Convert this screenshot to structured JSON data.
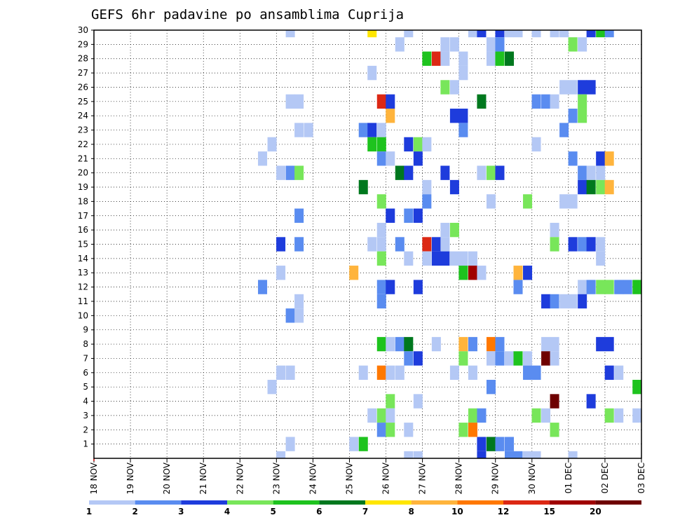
{
  "chart_data": {
    "type": "heatmap",
    "title": "GEFS 6hr padavine po ansamblima Cuprija",
    "xlabel": "",
    "ylabel": "",
    "x_tick_labels": [
      "18 NOV",
      "19 NOV",
      "20 NOV",
      "21 NOV",
      "22 NOV",
      "23 NOV",
      "24 NOV",
      "25 NOV",
      "26 NOV",
      "27 NOV",
      "28 NOV",
      "29 NOV",
      "30 NOV",
      "01 DEC",
      "02 DEC",
      "03 DEC"
    ],
    "y_tick_labels": [
      "1",
      "2",
      "3",
      "4",
      "5",
      "6",
      "7",
      "8",
      "9",
      "10",
      "11",
      "12",
      "13",
      "14",
      "15",
      "16",
      "17",
      "18",
      "19",
      "20",
      "21",
      "22",
      "23",
      "24",
      "25",
      "26",
      "27",
      "28",
      "29",
      "30"
    ],
    "x_range_days": [
      0,
      15
    ],
    "y_range_members": [
      0,
      30
    ],
    "grid": true,
    "legend": {
      "placement": "bottom",
      "labels": [
        "1",
        "2",
        "3",
        "4",
        "5",
        "6",
        "7",
        "8",
        "10",
        "12",
        "15",
        "20"
      ],
      "colors": [
        "#b4c8f5",
        "#5a8cf0",
        "#1e3cdc",
        "#78e65a",
        "#1ec31e",
        "#00781e",
        "#ffe600",
        "#ffb43c",
        "#ff7800",
        "#dc2814",
        "#a00000",
        "#6e0000"
      ]
    },
    "cells": [
      {
        "m": 30,
        "x": 5.38,
        "v": 1
      },
      {
        "m": 30,
        "x": 7.62,
        "v": 7
      },
      {
        "m": 30,
        "x": 8.62,
        "v": 1
      },
      {
        "m": 30,
        "x": 10.38,
        "v": 1
      },
      {
        "m": 30,
        "x": 10.62,
        "v": 3
      },
      {
        "m": 30,
        "x": 11.12,
        "v": 3
      },
      {
        "m": 30,
        "x": 11.38,
        "v": 1
      },
      {
        "m": 30,
        "x": 11.62,
        "v": 1
      },
      {
        "m": 30,
        "x": 12.12,
        "v": 1
      },
      {
        "m": 30,
        "x": 12.62,
        "v": 1
      },
      {
        "m": 30,
        "x": 12.88,
        "v": 1
      },
      {
        "m": 30,
        "x": 13.62,
        "v": 3
      },
      {
        "m": 30,
        "x": 13.88,
        "v": 5
      },
      {
        "m": 30,
        "x": 14.12,
        "v": 2
      },
      {
        "m": 29,
        "x": 8.38,
        "v": 1
      },
      {
        "m": 29,
        "x": 9.62,
        "v": 1
      },
      {
        "m": 29,
        "x": 9.88,
        "v": 1
      },
      {
        "m": 29,
        "x": 10.88,
        "v": 1
      },
      {
        "m": 29,
        "x": 11.12,
        "v": 2
      },
      {
        "m": 29,
        "x": 13.12,
        "v": 4
      },
      {
        "m": 29,
        "x": 13.38,
        "v": 1
      },
      {
        "m": 28,
        "x": 9.12,
        "v": 5
      },
      {
        "m": 28,
        "x": 9.38,
        "v": 12
      },
      {
        "m": 28,
        "x": 9.62,
        "v": 1
      },
      {
        "m": 28,
        "x": 10.12,
        "v": 1
      },
      {
        "m": 28,
        "x": 10.88,
        "v": 1
      },
      {
        "m": 28,
        "x": 11.12,
        "v": 5
      },
      {
        "m": 28,
        "x": 11.38,
        "v": 6
      },
      {
        "m": 27,
        "x": 7.62,
        "v": 1
      },
      {
        "m": 27,
        "x": 10.12,
        "v": 1
      },
      {
        "m": 26,
        "x": 9.62,
        "v": 4
      },
      {
        "m": 26,
        "x": 9.88,
        "v": 1
      },
      {
        "m": 26,
        "x": 12.88,
        "v": 1
      },
      {
        "m": 26,
        "x": 13.12,
        "v": 1
      },
      {
        "m": 26,
        "x": 13.38,
        "v": 3
      },
      {
        "m": 26,
        "x": 13.62,
        "v": 3
      },
      {
        "m": 25,
        "x": 5.38,
        "v": 1
      },
      {
        "m": 25,
        "x": 5.62,
        "v": 1
      },
      {
        "m": 25,
        "x": 7.88,
        "v": 12
      },
      {
        "m": 25,
        "x": 8.12,
        "v": 3
      },
      {
        "m": 25,
        "x": 10.62,
        "v": 6
      },
      {
        "m": 25,
        "x": 12.12,
        "v": 2
      },
      {
        "m": 25,
        "x": 12.38,
        "v": 2
      },
      {
        "m": 25,
        "x": 12.62,
        "v": 1
      },
      {
        "m": 25,
        "x": 13.38,
        "v": 4
      },
      {
        "m": 24,
        "x": 8.12,
        "v": 8
      },
      {
        "m": 24,
        "x": 9.88,
        "v": 3
      },
      {
        "m": 24,
        "x": 10.12,
        "v": 3
      },
      {
        "m": 24,
        "x": 13.12,
        "v": 2
      },
      {
        "m": 24,
        "x": 13.38,
        "v": 4
      },
      {
        "m": 23,
        "x": 5.62,
        "v": 1
      },
      {
        "m": 23,
        "x": 5.88,
        "v": 1
      },
      {
        "m": 23,
        "x": 7.38,
        "v": 2
      },
      {
        "m": 23,
        "x": 7.62,
        "v": 3
      },
      {
        "m": 23,
        "x": 7.88,
        "v": 1
      },
      {
        "m": 23,
        "x": 10.12,
        "v": 2
      },
      {
        "m": 23,
        "x": 12.88,
        "v": 2
      },
      {
        "m": 22,
        "x": 4.88,
        "v": 1
      },
      {
        "m": 22,
        "x": 7.62,
        "v": 5
      },
      {
        "m": 22,
        "x": 7.88,
        "v": 5
      },
      {
        "m": 22,
        "x": 8.62,
        "v": 3
      },
      {
        "m": 22,
        "x": 8.88,
        "v": 4
      },
      {
        "m": 22,
        "x": 9.12,
        "v": 1
      },
      {
        "m": 22,
        "x": 12.12,
        "v": 1
      },
      {
        "m": 21,
        "x": 4.62,
        "v": 1
      },
      {
        "m": 21,
        "x": 7.88,
        "v": 2
      },
      {
        "m": 21,
        "x": 8.12,
        "v": 1
      },
      {
        "m": 21,
        "x": 8.88,
        "v": 3
      },
      {
        "m": 21,
        "x": 13.12,
        "v": 2
      },
      {
        "m": 21,
        "x": 13.88,
        "v": 3
      },
      {
        "m": 21,
        "x": 14.12,
        "v": 8
      },
      {
        "m": 20,
        "x": 5.12,
        "v": 1
      },
      {
        "m": 20,
        "x": 5.38,
        "v": 2
      },
      {
        "m": 20,
        "x": 5.62,
        "v": 4
      },
      {
        "m": 20,
        "x": 8.38,
        "v": 6
      },
      {
        "m": 20,
        "x": 8.62,
        "v": 3
      },
      {
        "m": 20,
        "x": 9.62,
        "v": 3
      },
      {
        "m": 20,
        "x": 10.62,
        "v": 1
      },
      {
        "m": 20,
        "x": 10.88,
        "v": 4
      },
      {
        "m": 20,
        "x": 11.12,
        "v": 3
      },
      {
        "m": 20,
        "x": 13.38,
        "v": 2
      },
      {
        "m": 20,
        "x": 13.62,
        "v": 1
      },
      {
        "m": 20,
        "x": 13.88,
        "v": 1
      },
      {
        "m": 19,
        "x": 7.38,
        "v": 6
      },
      {
        "m": 19,
        "x": 9.12,
        "v": 1
      },
      {
        "m": 19,
        "x": 9.88,
        "v": 3
      },
      {
        "m": 19,
        "x": 13.38,
        "v": 3
      },
      {
        "m": 19,
        "x": 13.62,
        "v": 6
      },
      {
        "m": 19,
        "x": 13.88,
        "v": 4
      },
      {
        "m": 19,
        "x": 14.12,
        "v": 8
      },
      {
        "m": 18,
        "x": 7.88,
        "v": 4
      },
      {
        "m": 18,
        "x": 9.12,
        "v": 2
      },
      {
        "m": 18,
        "x": 10.88,
        "v": 1
      },
      {
        "m": 18,
        "x": 11.88,
        "v": 4
      },
      {
        "m": 18,
        "x": 12.88,
        "v": 1
      },
      {
        "m": 18,
        "x": 13.12,
        "v": 1
      },
      {
        "m": 17,
        "x": 5.62,
        "v": 2
      },
      {
        "m": 17,
        "x": 8.12,
        "v": 3
      },
      {
        "m": 17,
        "x": 8.62,
        "v": 2
      },
      {
        "m": 17,
        "x": 8.88,
        "v": 3
      },
      {
        "m": 16,
        "x": 7.88,
        "v": 1
      },
      {
        "m": 16,
        "x": 9.62,
        "v": 1
      },
      {
        "m": 16,
        "x": 9.88,
        "v": 4
      },
      {
        "m": 16,
        "x": 12.62,
        "v": 1
      },
      {
        "m": 15,
        "x": 5.12,
        "v": 3
      },
      {
        "m": 15,
        "x": 5.62,
        "v": 2
      },
      {
        "m": 15,
        "x": 7.62,
        "v": 1
      },
      {
        "m": 15,
        "x": 7.88,
        "v": 1
      },
      {
        "m": 15,
        "x": 8.38,
        "v": 2
      },
      {
        "m": 15,
        "x": 9.12,
        "v": 12
      },
      {
        "m": 15,
        "x": 9.38,
        "v": 3
      },
      {
        "m": 15,
        "x": 9.62,
        "v": 1
      },
      {
        "m": 15,
        "x": 12.62,
        "v": 4
      },
      {
        "m": 15,
        "x": 13.12,
        "v": 3
      },
      {
        "m": 15,
        "x": 13.38,
        "v": 2
      },
      {
        "m": 15,
        "x": 13.62,
        "v": 3
      },
      {
        "m": 15,
        "x": 13.88,
        "v": 1
      },
      {
        "m": 14,
        "x": 7.88,
        "v": 4
      },
      {
        "m": 14,
        "x": 8.62,
        "v": 1
      },
      {
        "m": 14,
        "x": 9.12,
        "v": 1
      },
      {
        "m": 14,
        "x": 9.38,
        "v": 3
      },
      {
        "m": 14,
        "x": 9.62,
        "v": 3
      },
      {
        "m": 14,
        "x": 9.88,
        "v": 1
      },
      {
        "m": 14,
        "x": 10.12,
        "v": 1
      },
      {
        "m": 14,
        "x": 10.38,
        "v": 1
      },
      {
        "m": 14,
        "x": 13.88,
        "v": 1
      },
      {
        "m": 13,
        "x": 5.12,
        "v": 1
      },
      {
        "m": 13,
        "x": 7.12,
        "v": 8
      },
      {
        "m": 13,
        "x": 10.12,
        "v": 5
      },
      {
        "m": 13,
        "x": 10.38,
        "v": 15
      },
      {
        "m": 13,
        "x": 10.62,
        "v": 1
      },
      {
        "m": 13,
        "x": 11.62,
        "v": 8
      },
      {
        "m": 13,
        "x": 11.88,
        "v": 3
      },
      {
        "m": 12,
        "x": 4.62,
        "v": 2
      },
      {
        "m": 12,
        "x": 7.88,
        "v": 2
      },
      {
        "m": 12,
        "x": 8.12,
        "v": 3
      },
      {
        "m": 12,
        "x": 8.88,
        "v": 3
      },
      {
        "m": 12,
        "x": 11.62,
        "v": 2
      },
      {
        "m": 12,
        "x": 13.38,
        "v": 1
      },
      {
        "m": 12,
        "x": 13.62,
        "v": 2
      },
      {
        "m": 12,
        "x": 13.88,
        "v": 4
      },
      {
        "m": 12,
        "x": 14.12,
        "v": 4
      },
      {
        "m": 12,
        "x": 14.38,
        "v": 2
      },
      {
        "m": 12,
        "x": 14.62,
        "v": 2
      },
      {
        "m": 12,
        "x": 14.88,
        "v": 5
      },
      {
        "m": 11,
        "x": 5.62,
        "v": 1
      },
      {
        "m": 11,
        "x": 7.88,
        "v": 2
      },
      {
        "m": 11,
        "x": 12.38,
        "v": 3
      },
      {
        "m": 11,
        "x": 12.62,
        "v": 2
      },
      {
        "m": 11,
        "x": 12.88,
        "v": 1
      },
      {
        "m": 11,
        "x": 13.12,
        "v": 1
      },
      {
        "m": 11,
        "x": 13.38,
        "v": 3
      },
      {
        "m": 10,
        "x": 5.38,
        "v": 2
      },
      {
        "m": 10,
        "x": 5.62,
        "v": 1
      },
      {
        "m": 8,
        "x": 7.88,
        "v": 5
      },
      {
        "m": 8,
        "x": 8.12,
        "v": 1
      },
      {
        "m": 8,
        "x": 8.38,
        "v": 2
      },
      {
        "m": 8,
        "x": 8.62,
        "v": 6
      },
      {
        "m": 8,
        "x": 9.38,
        "v": 1
      },
      {
        "m": 8,
        "x": 10.12,
        "v": 8
      },
      {
        "m": 8,
        "x": 10.38,
        "v": 2
      },
      {
        "m": 8,
        "x": 10.88,
        "v": 10
      },
      {
        "m": 8,
        "x": 11.12,
        "v": 2
      },
      {
        "m": 8,
        "x": 12.38,
        "v": 1
      },
      {
        "m": 8,
        "x": 12.62,
        "v": 1
      },
      {
        "m": 8,
        "x": 13.88,
        "v": 3
      },
      {
        "m": 8,
        "x": 14.12,
        "v": 3
      },
      {
        "m": 7,
        "x": 8.62,
        "v": 2
      },
      {
        "m": 7,
        "x": 8.88,
        "v": 3
      },
      {
        "m": 7,
        "x": 10.12,
        "v": 4
      },
      {
        "m": 7,
        "x": 10.88,
        "v": 1
      },
      {
        "m": 7,
        "x": 11.12,
        "v": 2
      },
      {
        "m": 7,
        "x": 11.38,
        "v": 1
      },
      {
        "m": 7,
        "x": 11.62,
        "v": 5
      },
      {
        "m": 7,
        "x": 11.88,
        "v": 1
      },
      {
        "m": 7,
        "x": 12.38,
        "v": 20
      },
      {
        "m": 7,
        "x": 12.62,
        "v": 1
      },
      {
        "m": 6,
        "x": 5.12,
        "v": 1
      },
      {
        "m": 6,
        "x": 5.38,
        "v": 1
      },
      {
        "m": 6,
        "x": 7.38,
        "v": 1
      },
      {
        "m": 6,
        "x": 7.88,
        "v": 10
      },
      {
        "m": 6,
        "x": 8.12,
        "v": 1
      },
      {
        "m": 6,
        "x": 8.38,
        "v": 1
      },
      {
        "m": 6,
        "x": 9.88,
        "v": 1
      },
      {
        "m": 6,
        "x": 10.38,
        "v": 1
      },
      {
        "m": 6,
        "x": 11.88,
        "v": 2
      },
      {
        "m": 6,
        "x": 12.12,
        "v": 2
      },
      {
        "m": 6,
        "x": 14.12,
        "v": 3
      },
      {
        "m": 6,
        "x": 14.38,
        "v": 1
      },
      {
        "m": 5,
        "x": 4.88,
        "v": 1
      },
      {
        "m": 5,
        "x": 10.88,
        "v": 2
      },
      {
        "m": 5,
        "x": 14.88,
        "v": 5
      },
      {
        "m": 4,
        "x": 8.12,
        "v": 4
      },
      {
        "m": 4,
        "x": 8.88,
        "v": 1
      },
      {
        "m": 4,
        "x": 12.62,
        "v": 20
      },
      {
        "m": 4,
        "x": 13.62,
        "v": 3
      },
      {
        "m": 3,
        "x": 7.62,
        "v": 1
      },
      {
        "m": 3,
        "x": 7.88,
        "v": 4
      },
      {
        "m": 3,
        "x": 8.12,
        "v": 1
      },
      {
        "m": 3,
        "x": 10.38,
        "v": 4
      },
      {
        "m": 3,
        "x": 10.62,
        "v": 2
      },
      {
        "m": 3,
        "x": 12.12,
        "v": 4
      },
      {
        "m": 3,
        "x": 12.38,
        "v": 1
      },
      {
        "m": 3,
        "x": 14.12,
        "v": 4
      },
      {
        "m": 3,
        "x": 14.38,
        "v": 1
      },
      {
        "m": 3,
        "x": 14.88,
        "v": 1
      },
      {
        "m": 2,
        "x": 7.88,
        "v": 2
      },
      {
        "m": 2,
        "x": 8.12,
        "v": 4
      },
      {
        "m": 2,
        "x": 8.62,
        "v": 1
      },
      {
        "m": 2,
        "x": 10.12,
        "v": 4
      },
      {
        "m": 2,
        "x": 10.38,
        "v": 10
      },
      {
        "m": 2,
        "x": 12.62,
        "v": 4
      },
      {
        "m": 1,
        "x": 5.38,
        "v": 1
      },
      {
        "m": 1,
        "x": 7.12,
        "v": 1
      },
      {
        "m": 1,
        "x": 7.38,
        "v": 5
      },
      {
        "m": 1,
        "x": 10.62,
        "v": 3
      },
      {
        "m": 1,
        "x": 10.88,
        "v": 6
      },
      {
        "m": 1,
        "x": 11.12,
        "v": 2
      },
      {
        "m": 1,
        "x": 11.38,
        "v": 2
      },
      {
        "m": 0,
        "x": 5.12,
        "v": 1
      },
      {
        "m": 0,
        "x": 8.62,
        "v": 1
      },
      {
        "m": 0,
        "x": 8.88,
        "v": 1
      },
      {
        "m": 0,
        "x": 10.62,
        "v": 3
      },
      {
        "m": 0,
        "x": 11.38,
        "v": 2
      },
      {
        "m": 0,
        "x": 11.62,
        "v": 2
      },
      {
        "m": 0,
        "x": 11.88,
        "v": 1
      },
      {
        "m": 0,
        "x": 12.12,
        "v": 1
      },
      {
        "m": 0,
        "x": 13.12,
        "v": 1
      }
    ]
  }
}
